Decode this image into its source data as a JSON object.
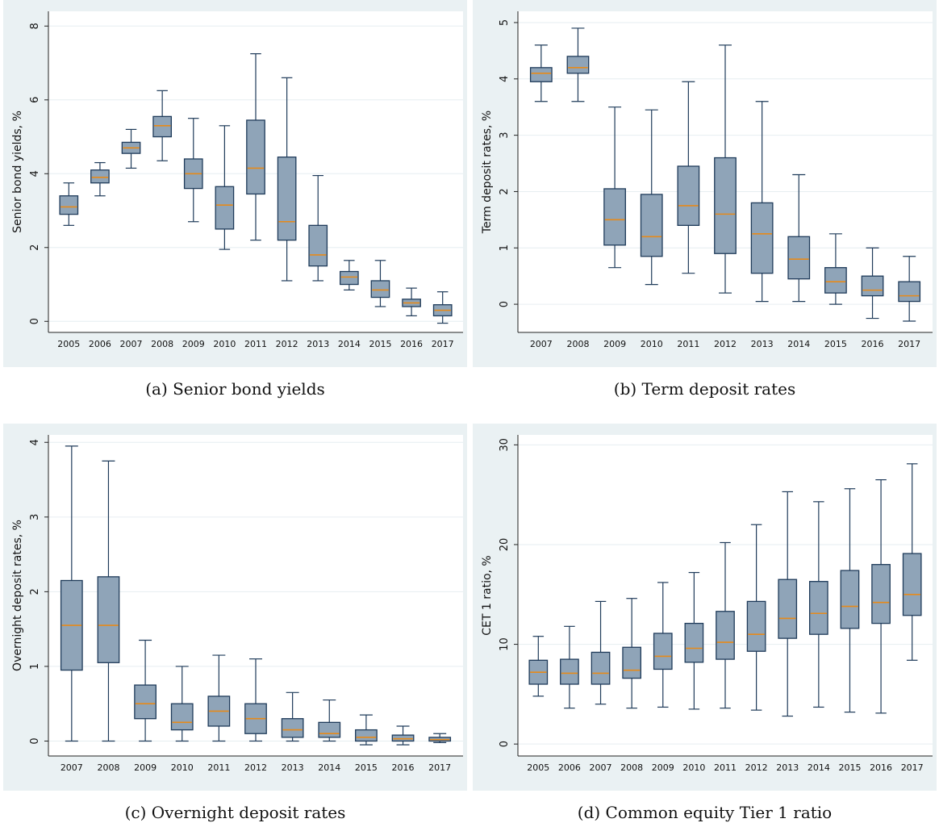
{
  "colors": {
    "background": "#eaf1f3",
    "plot_area": "#ffffff",
    "box_fill": "#8fa4b8",
    "box_stroke": "#1f3b5a",
    "median": "#e68a1a",
    "grid": "#e6eef1"
  },
  "chart_data": [
    {
      "type": "box",
      "caption": "(a) Senior bond yields",
      "ylabel": "Senior bond yields, %",
      "ylim": [
        -0.3,
        8.4
      ],
      "yticks": [
        0,
        2,
        4,
        6,
        8
      ],
      "grid": true,
      "categories": [
        "2005",
        "2006",
        "2007",
        "2008",
        "2009",
        "2010",
        "2011",
        "2012",
        "2013",
        "2014",
        "2015",
        "2016",
        "2017"
      ],
      "boxes": [
        {
          "min": 2.6,
          "q1": 2.9,
          "median": 3.1,
          "q3": 3.4,
          "max": 3.75
        },
        {
          "min": 3.4,
          "q1": 3.75,
          "median": 3.9,
          "q3": 4.1,
          "max": 4.3
        },
        {
          "min": 4.15,
          "q1": 4.55,
          "median": 4.7,
          "q3": 4.85,
          "max": 5.2
        },
        {
          "min": 4.35,
          "q1": 5.0,
          "median": 5.3,
          "q3": 5.55,
          "max": 6.25
        },
        {
          "min": 2.7,
          "q1": 3.6,
          "median": 4.0,
          "q3": 4.4,
          "max": 5.5
        },
        {
          "min": 1.95,
          "q1": 2.5,
          "median": 3.15,
          "q3": 3.65,
          "max": 5.3
        },
        {
          "min": 2.2,
          "q1": 3.45,
          "median": 4.15,
          "q3": 5.45,
          "max": 7.25
        },
        {
          "min": 1.1,
          "q1": 2.2,
          "median": 2.7,
          "q3": 4.45,
          "max": 6.6
        },
        {
          "min": 1.1,
          "q1": 1.5,
          "median": 1.8,
          "q3": 2.6,
          "max": 3.95
        },
        {
          "min": 0.85,
          "q1": 1.0,
          "median": 1.2,
          "q3": 1.35,
          "max": 1.65
        },
        {
          "min": 0.4,
          "q1": 0.65,
          "median": 0.85,
          "q3": 1.1,
          "max": 1.65
        },
        {
          "min": 0.15,
          "q1": 0.4,
          "median": 0.5,
          "q3": 0.6,
          "max": 0.9
        },
        {
          "min": -0.05,
          "q1": 0.15,
          "median": 0.3,
          "q3": 0.45,
          "max": 0.8
        }
      ]
    },
    {
      "type": "box",
      "caption": "(b) Term deposit rates",
      "ylabel": "Term deposit rates, %",
      "ylim": [
        -0.5,
        5.2
      ],
      "yticks": [
        0,
        1,
        2,
        3,
        4,
        5
      ],
      "grid": true,
      "categories": [
        "2007",
        "2008",
        "2009",
        "2010",
        "2011",
        "2012",
        "2013",
        "2014",
        "2015",
        "2016",
        "2017"
      ],
      "boxes": [
        {
          "min": 3.6,
          "q1": 3.95,
          "median": 4.1,
          "q3": 4.2,
          "max": 4.6
        },
        {
          "min": 3.6,
          "q1": 4.1,
          "median": 4.2,
          "q3": 4.4,
          "max": 4.9
        },
        {
          "min": 0.65,
          "q1": 1.05,
          "median": 1.5,
          "q3": 2.05,
          "max": 3.5
        },
        {
          "min": 0.35,
          "q1": 0.85,
          "median": 1.2,
          "q3": 1.95,
          "max": 3.45
        },
        {
          "min": 0.55,
          "q1": 1.4,
          "median": 1.75,
          "q3": 2.45,
          "max": 3.95
        },
        {
          "min": 0.2,
          "q1": 0.9,
          "median": 1.6,
          "q3": 2.6,
          "max": 4.6
        },
        {
          "min": 0.05,
          "q1": 0.55,
          "median": 1.25,
          "q3": 1.8,
          "max": 3.6
        },
        {
          "min": 0.05,
          "q1": 0.45,
          "median": 0.8,
          "q3": 1.2,
          "max": 2.3
        },
        {
          "min": 0.0,
          "q1": 0.2,
          "median": 0.4,
          "q3": 0.65,
          "max": 1.25
        },
        {
          "min": -0.25,
          "q1": 0.15,
          "median": 0.25,
          "q3": 0.5,
          "max": 1.0
        },
        {
          "min": -0.3,
          "q1": 0.05,
          "median": 0.15,
          "q3": 0.4,
          "max": 0.85
        }
      ]
    },
    {
      "type": "box",
      "caption": "(c) Overnight deposit rates",
      "ylabel": "Overnight deposit rates, %",
      "ylim": [
        -0.2,
        4.1
      ],
      "yticks": [
        0,
        1,
        2,
        3,
        4
      ],
      "grid": true,
      "categories": [
        "2007",
        "2008",
        "2009",
        "2010",
        "2011",
        "2012",
        "2013",
        "2014",
        "2015",
        "2016",
        "2017"
      ],
      "boxes": [
        {
          "min": 0.0,
          "q1": 0.95,
          "median": 1.55,
          "q3": 2.15,
          "max": 3.95
        },
        {
          "min": 0.0,
          "q1": 1.05,
          "median": 1.55,
          "q3": 2.2,
          "max": 3.75
        },
        {
          "min": 0.0,
          "q1": 0.3,
          "median": 0.5,
          "q3": 0.75,
          "max": 1.35
        },
        {
          "min": 0.0,
          "q1": 0.15,
          "median": 0.25,
          "q3": 0.5,
          "max": 1.0
        },
        {
          "min": 0.0,
          "q1": 0.2,
          "median": 0.4,
          "q3": 0.6,
          "max": 1.15
        },
        {
          "min": 0.0,
          "q1": 0.1,
          "median": 0.3,
          "q3": 0.5,
          "max": 1.1
        },
        {
          "min": 0.0,
          "q1": 0.05,
          "median": 0.15,
          "q3": 0.3,
          "max": 0.65
        },
        {
          "min": 0.0,
          "q1": 0.05,
          "median": 0.1,
          "q3": 0.25,
          "max": 0.55
        },
        {
          "min": -0.05,
          "q1": 0.0,
          "median": 0.05,
          "q3": 0.15,
          "max": 0.35
        },
        {
          "min": -0.05,
          "q1": 0.0,
          "median": 0.03,
          "q3": 0.08,
          "max": 0.2
        },
        {
          "min": -0.02,
          "q1": 0.0,
          "median": 0.02,
          "q3": 0.05,
          "max": 0.1
        }
      ]
    },
    {
      "type": "box",
      "caption": "(d) Common equity Tier 1 ratio",
      "ylabel": "CET 1 ratio, %",
      "ylim": [
        -1.2,
        31
      ],
      "yticks": [
        0,
        10,
        20,
        30
      ],
      "grid": true,
      "categories": [
        "2005",
        "2006",
        "2007",
        "2008",
        "2009",
        "2010",
        "2011",
        "2012",
        "2013",
        "2014",
        "2015",
        "2016",
        "2017"
      ],
      "boxes": [
        {
          "min": 4.8,
          "q1": 6.0,
          "median": 7.2,
          "q3": 8.4,
          "max": 10.8
        },
        {
          "min": 3.6,
          "q1": 6.0,
          "median": 7.1,
          "q3": 8.5,
          "max": 11.8
        },
        {
          "min": 4.0,
          "q1": 6.0,
          "median": 7.1,
          "q3": 9.2,
          "max": 14.3
        },
        {
          "min": 3.6,
          "q1": 6.6,
          "median": 7.4,
          "q3": 9.7,
          "max": 14.6
        },
        {
          "min": 3.7,
          "q1": 7.5,
          "median": 8.8,
          "q3": 11.1,
          "max": 16.2
        },
        {
          "min": 3.5,
          "q1": 8.2,
          "median": 9.6,
          "q3": 12.1,
          "max": 17.2
        },
        {
          "min": 3.6,
          "q1": 8.5,
          "median": 10.2,
          "q3": 13.3,
          "max": 20.2
        },
        {
          "min": 3.4,
          "q1": 9.3,
          "median": 11.0,
          "q3": 14.3,
          "max": 22.0
        },
        {
          "min": 2.8,
          "q1": 10.6,
          "median": 12.6,
          "q3": 16.5,
          "max": 25.3
        },
        {
          "min": 3.7,
          "q1": 11.0,
          "median": 13.1,
          "q3": 16.3,
          "max": 24.3
        },
        {
          "min": 3.2,
          "q1": 11.6,
          "median": 13.8,
          "q3": 17.4,
          "max": 25.6
        },
        {
          "min": 3.1,
          "q1": 12.1,
          "median": 14.2,
          "q3": 18.0,
          "max": 26.5
        },
        {
          "min": 8.4,
          "q1": 12.9,
          "median": 15.0,
          "q3": 19.1,
          "max": 28.1
        }
      ]
    }
  ]
}
